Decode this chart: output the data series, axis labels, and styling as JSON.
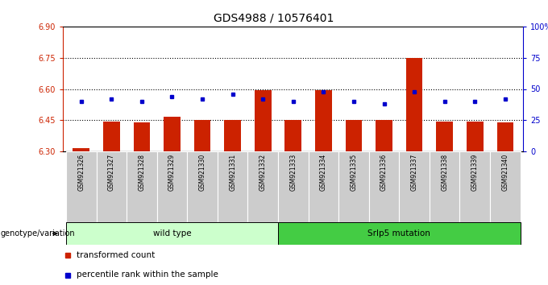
{
  "title": "GDS4988 / 10576401",
  "samples": [
    "GSM921326",
    "GSM921327",
    "GSM921328",
    "GSM921329",
    "GSM921330",
    "GSM921331",
    "GSM921332",
    "GSM921333",
    "GSM921334",
    "GSM921335",
    "GSM921336",
    "GSM921337",
    "GSM921338",
    "GSM921339",
    "GSM921340"
  ],
  "transformed_count": [
    6.315,
    6.445,
    6.438,
    6.465,
    6.45,
    6.45,
    6.595,
    6.45,
    6.595,
    6.45,
    6.45,
    6.75,
    6.443,
    6.445,
    6.438
  ],
  "percentile_rank": [
    40,
    42,
    40,
    44,
    42,
    46,
    42,
    40,
    48,
    40,
    38,
    48,
    40,
    40,
    42
  ],
  "ylim_left": [
    6.3,
    6.9
  ],
  "ylim_right": [
    0,
    100
  ],
  "yticks_left": [
    6.3,
    6.45,
    6.6,
    6.75,
    6.9
  ],
  "yticks_right": [
    0,
    25,
    50,
    75,
    100
  ],
  "ytick_labels_right": [
    "0",
    "25",
    "50",
    "75",
    "100%"
  ],
  "hlines": [
    6.45,
    6.6,
    6.75
  ],
  "bar_color": "#cc2200",
  "dot_color": "#0000cc",
  "bar_bottom": 6.3,
  "wild_type_samples": 7,
  "group_labels": [
    "wild type",
    "Srlp5 mutation"
  ],
  "wt_color": "#ccffcc",
  "mut_color": "#44cc44",
  "genotype_label": "genotype/variation",
  "legend_items": [
    {
      "label": "transformed count",
      "color": "#cc2200"
    },
    {
      "label": "percentile rank within the sample",
      "color": "#0000cc"
    }
  ],
  "left_tick_color": "#cc2200",
  "right_tick_color": "#0000cc",
  "xtick_bg_color": "#cccccc",
  "title_fontsize": 10,
  "bar_width": 0.55
}
